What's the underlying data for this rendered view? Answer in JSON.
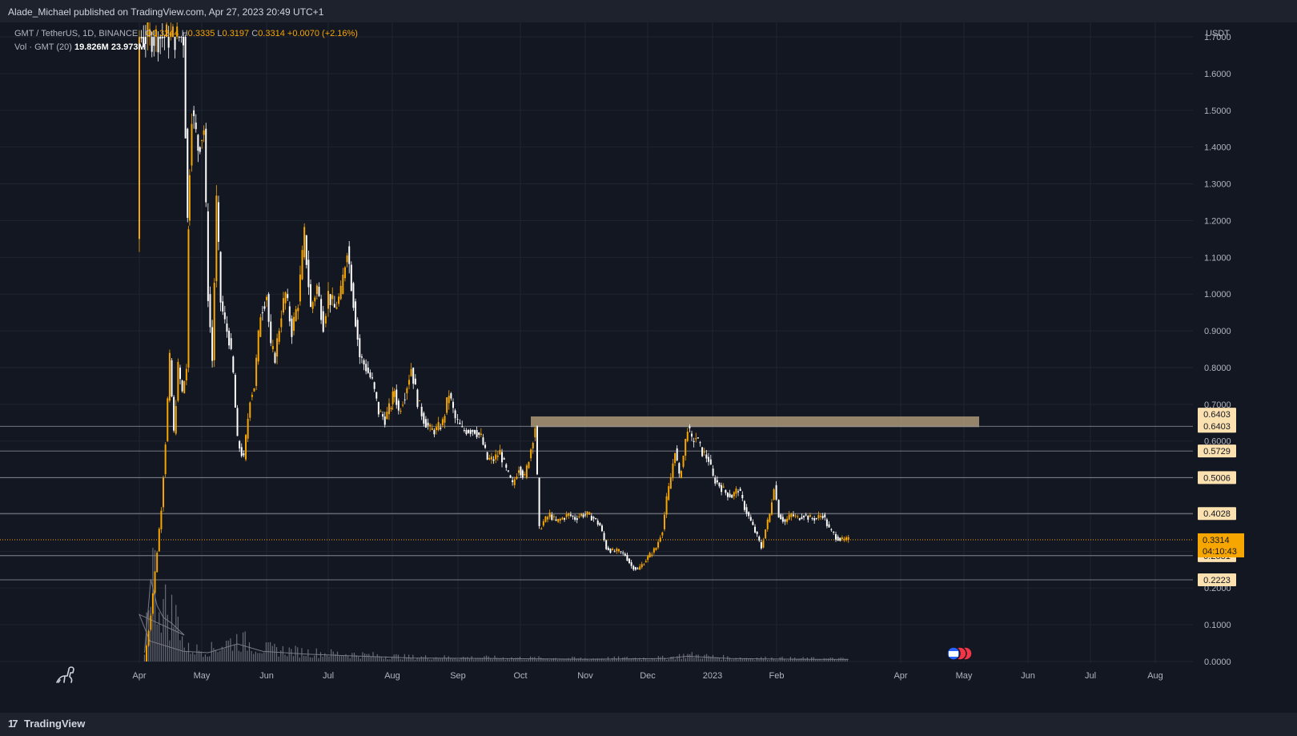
{
  "header": {
    "publish_line": "Alade_Michael published on TradingView.com, Apr 27, 2023 20:49 UTC+1"
  },
  "legend": {
    "symbol": "GMT / TetherUS, 1D, BINANCE",
    "open_label": "O",
    "open": "0.3244",
    "high_label": "H",
    "high": "0.3335",
    "low_label": "L",
    "low": "0.3197",
    "close_label": "C",
    "close": "0.3314",
    "change": "+0.0070 (+2.16%)",
    "volume_label": "Vol · GMT (20)",
    "volume": "19.826M",
    "volume_ma": "23.973M"
  },
  "footer": {
    "brand": "TradingView"
  },
  "colors": {
    "background": "#131722",
    "up": "#f7a600",
    "down": "#ffffff",
    "zone": "#c8ae85",
    "price_label_bg": "#fbe0b0",
    "current_price_bg": "#f7a600"
  },
  "chart_data": {
    "type": "candlestick",
    "symbol": "GMT/USDT",
    "interval": "1D",
    "ylim": [
      0.0,
      1.7
    ],
    "currency": "USDT",
    "y_ticks": [
      "1.7000",
      "1.6000",
      "1.5000",
      "1.4000",
      "1.3000",
      "1.2000",
      "1.1000",
      "1.0000",
      "0.9000",
      "0.8000",
      "0.7000",
      "0.6000",
      "0.2000",
      "0.1000",
      "0.0000"
    ],
    "x_ticks": [
      "Apr",
      "May",
      "Jun",
      "Jul",
      "Aug",
      "Sep",
      "Oct",
      "Nov",
      "Dec",
      "2023",
      "Feb",
      "Apr",
      "May",
      "Jun",
      "Jul",
      "Aug"
    ],
    "horizontal_levels": [
      0.6403,
      0.5729,
      0.5006,
      0.4028,
      0.2881,
      0.2223
    ],
    "level_labels": [
      "0.6403",
      "0.6403",
      "0.5729",
      "0.5006",
      "0.4028",
      "0.2881",
      "0.2223"
    ],
    "resistance_zone": {
      "from": "Oct",
      "to": "Apr",
      "low": 0.64,
      "high": 0.665
    },
    "current_price": {
      "value": 0.3314,
      "label": "0.3314",
      "countdown": "04:10:43"
    },
    "price_path": [
      [
        "Mar 9",
        0.0
      ],
      [
        "Mar 12",
        0.13
      ],
      [
        "Mar 15",
        0.3
      ],
      [
        "Mar 17",
        0.42
      ],
      [
        "Mar 19",
        0.6
      ],
      [
        "Mar 21",
        0.82
      ],
      [
        "Mar 23",
        0.62
      ],
      [
        "Mar 25",
        0.8
      ],
      [
        "Mar 27",
        0.73
      ],
      [
        "Mar 29",
        0.8
      ],
      [
        "Mar 30",
        1.15
      ],
      [
        "Apr 1",
        1.7
      ],
      [
        "Apr 22",
        1.7
      ],
      [
        "Apr 24",
        1.2
      ],
      [
        "Apr 26",
        1.5
      ],
      [
        "Apr 29",
        1.4
      ],
      [
        "May 2",
        1.45
      ],
      [
        "May 4",
        1.0
      ],
      [
        "May 6",
        0.82
      ],
      [
        "May 8",
        1.25
      ],
      [
        "May 10",
        0.98
      ],
      [
        "May 12",
        0.92
      ],
      [
        "May 14",
        0.88
      ],
      [
        "May 16",
        0.78
      ],
      [
        "May 18",
        0.6
      ],
      [
        "May 21",
        0.55
      ],
      [
        "May 24",
        0.72
      ],
      [
        "May 26",
        0.75
      ],
      [
        "May 29",
        0.95
      ],
      [
        "Jun 1",
        1.0
      ],
      [
        "Jun 3",
        0.85
      ],
      [
        "Jun 5",
        0.83
      ],
      [
        "Jun 8",
        0.95
      ],
      [
        "Jun 10",
        1.0
      ],
      [
        "Jun 13",
        0.9
      ],
      [
        "Jun 16",
        0.98
      ],
      [
        "Jun 19",
        1.16
      ],
      [
        "Jun 22",
        0.96
      ],
      [
        "Jun 25",
        1.02
      ],
      [
        "Jun 28",
        0.92
      ],
      [
        "Jul 1",
        1.0
      ],
      [
        "Jul 4",
        0.96
      ],
      [
        "Jul 7",
        1.0
      ],
      [
        "Jul 10",
        1.13
      ],
      [
        "Jul 13",
        0.98
      ],
      [
        "Jul 16",
        0.83
      ],
      [
        "Jul 19",
        0.8
      ],
      [
        "Jul 22",
        0.76
      ],
      [
        "Jul 25",
        0.68
      ],
      [
        "Jul 28",
        0.66
      ],
      [
        "Jul 31",
        0.7
      ],
      [
        "Aug 2",
        0.74
      ],
      [
        "Aug 4",
        0.68
      ],
      [
        "Aug 7",
        0.73
      ],
      [
        "Aug 10",
        0.8
      ],
      [
        "Aug 13",
        0.71
      ],
      [
        "Aug 16",
        0.66
      ],
      [
        "Aug 19",
        0.63
      ],
      [
        "Aug 22",
        0.63
      ],
      [
        "Aug 25",
        0.65
      ],
      [
        "Aug 28",
        0.73
      ],
      [
        "Aug 31",
        0.66
      ],
      [
        "Sep 3",
        0.63
      ],
      [
        "Sep 6",
        0.63
      ],
      [
        "Sep 9",
        0.63
      ],
      [
        "Sep 12",
        0.61
      ],
      [
        "Sep 15",
        0.55
      ],
      [
        "Sep 18",
        0.55
      ],
      [
        "Sep 21",
        0.57
      ],
      [
        "Sep 24",
        0.52
      ],
      [
        "Sep 27",
        0.48
      ],
      [
        "Sep 30",
        0.53
      ],
      [
        "Oct 3",
        0.5
      ],
      [
        "Oct 6",
        0.58
      ],
      [
        "Oct 8",
        0.64
      ],
      [
        "Oct 10",
        0.36
      ],
      [
        "Oct 12",
        0.38
      ],
      [
        "Oct 15",
        0.4
      ],
      [
        "Oct 18",
        0.38
      ],
      [
        "Oct 21",
        0.39
      ],
      [
        "Oct 24",
        0.4
      ],
      [
        "Oct 27",
        0.39
      ],
      [
        "Oct 30",
        0.4
      ],
      [
        "Nov 2",
        0.4
      ],
      [
        "Nov 5",
        0.39
      ],
      [
        "Nov 8",
        0.37
      ],
      [
        "Nov 11",
        0.31
      ],
      [
        "Nov 14",
        0.3
      ],
      [
        "Nov 17",
        0.3
      ],
      [
        "Nov 20",
        0.29
      ],
      [
        "Nov 23",
        0.26
      ],
      [
        "Nov 26",
        0.25
      ],
      [
        "Nov 29",
        0.27
      ],
      [
        "Dec 2",
        0.29
      ],
      [
        "Dec 5",
        0.31
      ],
      [
        "Dec 8",
        0.36
      ],
      [
        "Dec 10",
        0.44
      ],
      [
        "Dec 12",
        0.5
      ],
      [
        "Dec 14",
        0.58
      ],
      [
        "Dec 16",
        0.5
      ],
      [
        "Dec 18",
        0.56
      ],
      [
        "Dec 20",
        0.64
      ],
      [
        "Dec 22",
        0.6
      ],
      [
        "Dec 24",
        0.61
      ],
      [
        "Dec 27",
        0.57
      ],
      [
        "Dec 30",
        0.55
      ],
      [
        "Jan 2",
        0.5
      ],
      [
        "Jan 5",
        0.48
      ],
      [
        "Jan 8",
        0.46
      ],
      [
        "Jan 11",
        0.45
      ],
      [
        "Jan 14",
        0.47
      ],
      [
        "Jan 17",
        0.42
      ],
      [
        "Jan 20",
        0.38
      ],
      [
        "Jan 23",
        0.34
      ],
      [
        "Jan 25",
        0.31
      ],
      [
        "Jan 27",
        0.36
      ],
      [
        "Jan 29",
        0.4
      ],
      [
        "Jan 31",
        0.48
      ],
      [
        "Feb 2",
        0.4
      ],
      [
        "Feb 5",
        0.38
      ],
      [
        "Feb 8",
        0.4
      ],
      [
        "Feb 11",
        0.39
      ],
      [
        "Feb 14",
        0.4
      ],
      [
        "Feb 17",
        0.39
      ],
      [
        "Feb 20",
        0.39
      ],
      [
        "Feb 23",
        0.4
      ],
      [
        "Feb 26",
        0.36
      ],
      [
        "Mar 1",
        0.34
      ],
      [
        "Mar 4",
        0.33
      ],
      [
        "Mar 7",
        0.3314
      ]
    ],
    "volume_path": [
      [
        "Mar 9",
        0.03
      ],
      [
        "Mar 12",
        0.28
      ],
      [
        "Mar 15",
        0.19
      ],
      [
        "Mar 18",
        0.15
      ],
      [
        "Mar 22",
        0.13
      ],
      [
        "Mar 28",
        0.09
      ],
      [
        "Apr 1",
        0.16
      ],
      [
        "Apr 6",
        0.07
      ],
      [
        "Apr 15",
        0.05
      ],
      [
        "Apr 22",
        0.035
      ],
      [
        "May 4",
        0.03
      ],
      [
        "May 18",
        0.06
      ],
      [
        "May 30",
        0.035
      ],
      [
        "Jun 20",
        0.025
      ],
      [
        "Jul 10",
        0.02
      ],
      [
        "Aug 10",
        0.012
      ],
      [
        "Sep 20",
        0.01
      ],
      [
        "Nov 1",
        0.008
      ],
      [
        "Dec 10",
        0.01
      ],
      [
        "Dec 20",
        0.018
      ],
      [
        "Jan 10",
        0.01
      ],
      [
        "Feb 10",
        0.008
      ],
      [
        "Mar 7",
        0.007
      ]
    ]
  }
}
